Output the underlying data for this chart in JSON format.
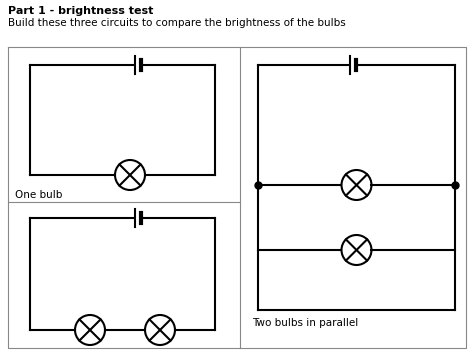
{
  "title": "Part 1 - brightness test",
  "subtitle": "Build these three circuits to compare the brightness of the bulbs",
  "label_one_bulb": "One bulb",
  "label_two_parallel": "Two bulbs in parallel",
  "bg_color": "#ffffff",
  "line_color": "#000000",
  "border_color": "#888888",
  "title_fontsize": 8,
  "subtitle_fontsize": 7.5,
  "label_fontsize": 7.5,
  "lw": 1.5,
  "bulb_r": 15,
  "batt_half_long": 9,
  "batt_half_short": 5,
  "dot_ms": 5
}
